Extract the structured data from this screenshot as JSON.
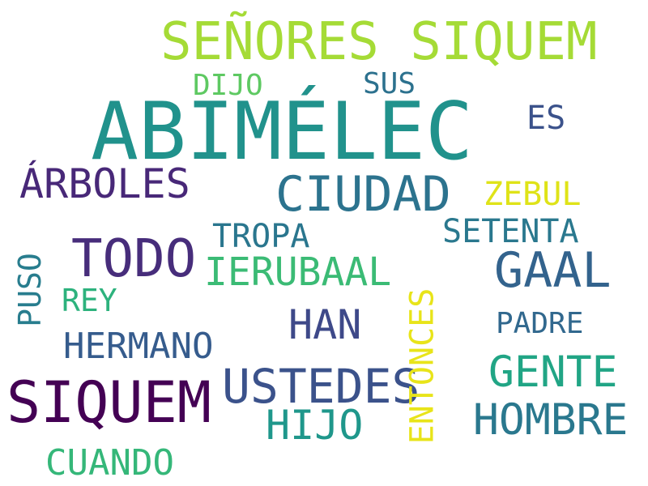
{
  "cloud": {
    "words": [
      {
        "text": "ABIMÉLEC",
        "color": "#21928c"
      },
      {
        "text": "SEÑORES SIQUEM",
        "color": "#a5db36"
      },
      {
        "text": "SIQUEM",
        "color": "#440154"
      },
      {
        "text": "CIUDAD",
        "color": "#2c738e"
      },
      {
        "text": "TODO",
        "color": "#472d7b"
      },
      {
        "text": "GAAL",
        "color": "#33638d"
      },
      {
        "text": "USTEDES",
        "color": "#3b528b"
      },
      {
        "text": "HOMBRE",
        "color": "#2a788e"
      },
      {
        "text": "GENTE",
        "color": "#21a585"
      },
      {
        "text": "ÁRBOLES",
        "color": "#482878"
      },
      {
        "text": "IERUBAAL",
        "color": "#3bbb75"
      },
      {
        "text": "HIJO",
        "color": "#1f978b"
      },
      {
        "text": "ENTONCES",
        "color": "#e8e419"
      },
      {
        "text": "HERMANO",
        "color": "#365c8d"
      },
      {
        "text": "HAN",
        "color": "#3e4989"
      },
      {
        "text": "CUANDO",
        "color": "#35b779"
      },
      {
        "text": "ZEBUL",
        "color": "#dfe318"
      },
      {
        "text": "SETENTA",
        "color": "#2a788e"
      },
      {
        "text": "TROPA",
        "color": "#2a768e"
      },
      {
        "text": "PADRE",
        "color": "#31688e"
      },
      {
        "text": "PUSO",
        "color": "#287d8e"
      },
      {
        "text": "REY",
        "color": "#2db27d"
      },
      {
        "text": "DIJO",
        "color": "#5ec962"
      },
      {
        "text": "SUS",
        "color": "#2c718e"
      },
      {
        "text": "ES",
        "color": "#3b528b"
      }
    ]
  }
}
